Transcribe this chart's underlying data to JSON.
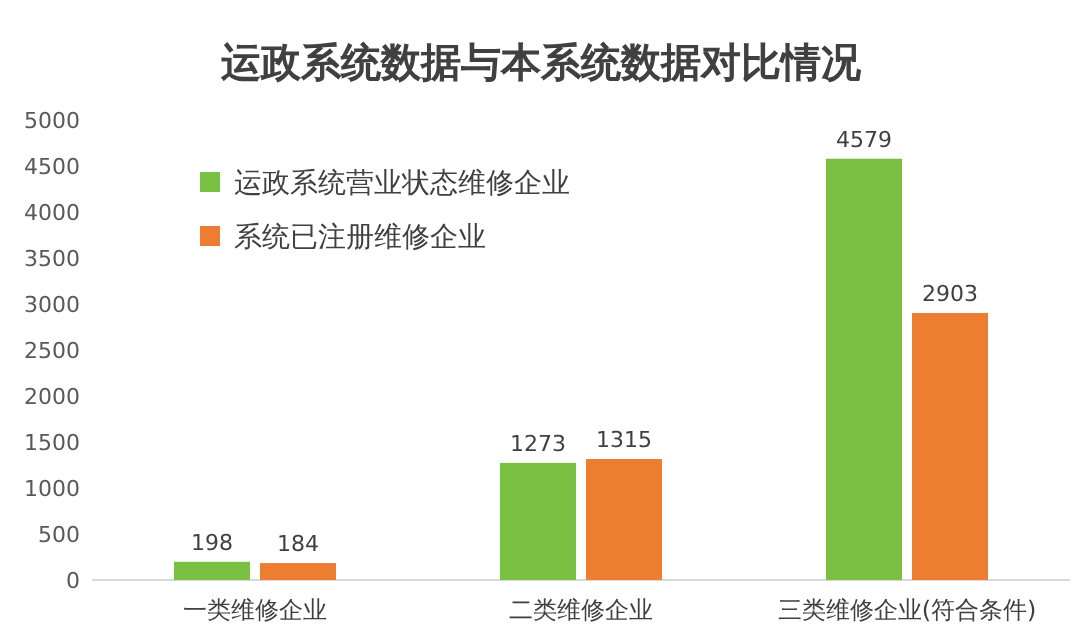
{
  "chart_data": {
    "type": "bar",
    "title": "运政系统数据与本系统数据对比情况",
    "categories": [
      "一类维修企业",
      "二类维修企业",
      "三类维修企业(符合条件)"
    ],
    "series": [
      {
        "name": "运政系统营业状态维修企业",
        "color": "#7ac143",
        "values": [
          198,
          1273,
          4579
        ]
      },
      {
        "name": "系统已注册维修企业",
        "color": "#ed7d31",
        "values": [
          184,
          1315,
          2903
        ]
      }
    ],
    "ylim": [
      0,
      5000
    ],
    "yticks": [
      0,
      500,
      1000,
      1500,
      2000,
      2500,
      3000,
      3500,
      4000,
      4500,
      5000
    ],
    "data_labels": true,
    "legend": "top left"
  }
}
